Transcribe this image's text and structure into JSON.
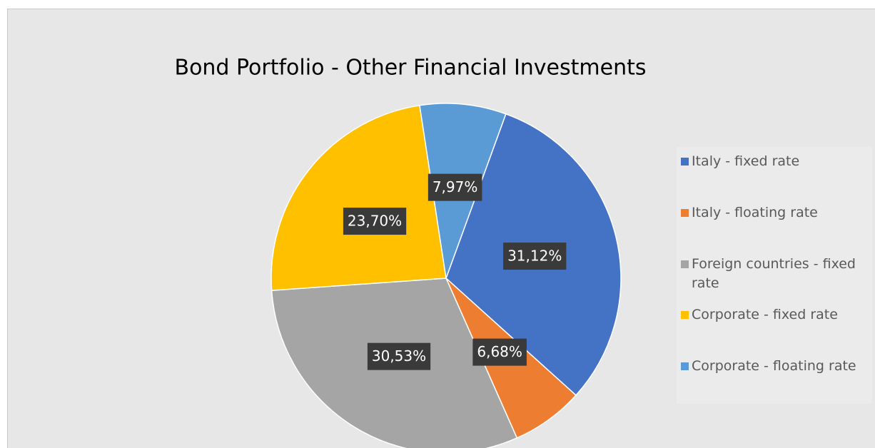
{
  "chart_data": {
    "type": "pie",
    "title": "Bond Portfolio - Other Financial Investments",
    "categories": [
      "Italy - fixed rate",
      "Italy - floating rate",
      "Foreign countries - fixed rate",
      "Corporate - fixed rate",
      "Corporate - floating rate"
    ],
    "values": [
      31.12,
      6.68,
      30.53,
      23.7,
      7.97
    ],
    "value_labels": [
      "31,12%",
      "6,68%",
      "30,53%",
      "23,70%",
      "7,97%"
    ],
    "colors": [
      "#4472c4",
      "#ed7d31",
      "#a5a5a5",
      "#ffc000",
      "#5b9bd5"
    ],
    "legend": "right"
  }
}
